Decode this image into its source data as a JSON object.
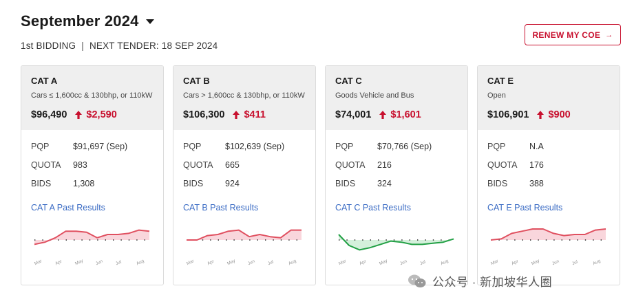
{
  "header": {
    "title": "September 2024",
    "bidding": "1st BIDDING",
    "separator": "|",
    "next_tender": "NEXT TENDER: 18 SEP 2024"
  },
  "renew_button": {
    "label": "RENEW MY COE",
    "arrow": "→"
  },
  "colors": {
    "accent": "#c8102e",
    "link": "#3a6bc4",
    "up_line": "#e05060",
    "up_fill": "#f9d6dc",
    "down_line": "#22a045",
    "down_fill": "#d4f0db"
  },
  "month_labels": [
    "Mar",
    "Apr",
    "May",
    "Jun",
    "Jul",
    "Aug"
  ],
  "cards": [
    {
      "name": "CAT A",
      "description": "Cars ≤ 1,600cc & 130bhp, or 110kW",
      "price": "$96,490",
      "change": "$2,590",
      "trend_icon": "up-arrow-icon",
      "stats": [
        {
          "label": "PQP",
          "value": "$91,697 (Sep)"
        },
        {
          "label": "QUOTA",
          "value": "983"
        },
        {
          "label": "BIDS",
          "value": "1,308"
        }
      ],
      "link": "CAT A Past Results",
      "chart_data": {
        "type": "line",
        "baseline": 0,
        "values": [
          -2,
          -1,
          1,
          4,
          4,
          3.5,
          1,
          2.5,
          2.5,
          3,
          4.5,
          4
        ]
      }
    },
    {
      "name": "CAT B",
      "description": "Cars > 1,600cc & 130bhp, or 110kW",
      "price": "$106,300",
      "change": "$411",
      "trend_icon": "up-arrow-icon",
      "stats": [
        {
          "label": "PQP",
          "value": "$102,639 (Sep)"
        },
        {
          "label": "QUOTA",
          "value": "665"
        },
        {
          "label": "BIDS",
          "value": "924"
        }
      ],
      "link": "CAT B Past Results",
      "chart_data": {
        "type": "line",
        "baseline": 0,
        "values": [
          0,
          0,
          2,
          2.5,
          4,
          4.5,
          1.5,
          2.5,
          1.5,
          1,
          4.5,
          4.5
        ]
      }
    },
    {
      "name": "CAT C",
      "description": "Goods Vehicle and Bus",
      "price": "$74,001",
      "change": "$1,601",
      "trend_icon": "up-arrow-icon",
      "stats": [
        {
          "label": "PQP",
          "value": "$70,766 (Sep)"
        },
        {
          "label": "QUOTA",
          "value": "216"
        },
        {
          "label": "BIDS",
          "value": "324"
        }
      ],
      "link": "CAT C Past Results",
      "chart_data": {
        "type": "line",
        "baseline": 0,
        "values": [
          2.5,
          -2.5,
          -4.5,
          -3.5,
          -2,
          -0.5,
          -1,
          -2,
          -2,
          -1.5,
          -1,
          0.5
        ]
      }
    },
    {
      "name": "CAT E",
      "description": "Open",
      "price": "$106,901",
      "change": "$900",
      "trend_icon": "up-arrow-icon",
      "stats": [
        {
          "label": "PQP",
          "value": "N.A"
        },
        {
          "label": "QUOTA",
          "value": "176"
        },
        {
          "label": "BIDS",
          "value": "388"
        }
      ],
      "link": "CAT E Past Results",
      "chart_data": {
        "type": "line",
        "baseline": 0,
        "values": [
          0,
          0.5,
          3,
          4,
          5,
          5,
          3,
          2,
          2.5,
          2.5,
          4.5,
          5
        ]
      }
    }
  ],
  "watermark": {
    "text": "公众号 · 新加坡华人圈",
    "icon": "wechat-icon"
  }
}
